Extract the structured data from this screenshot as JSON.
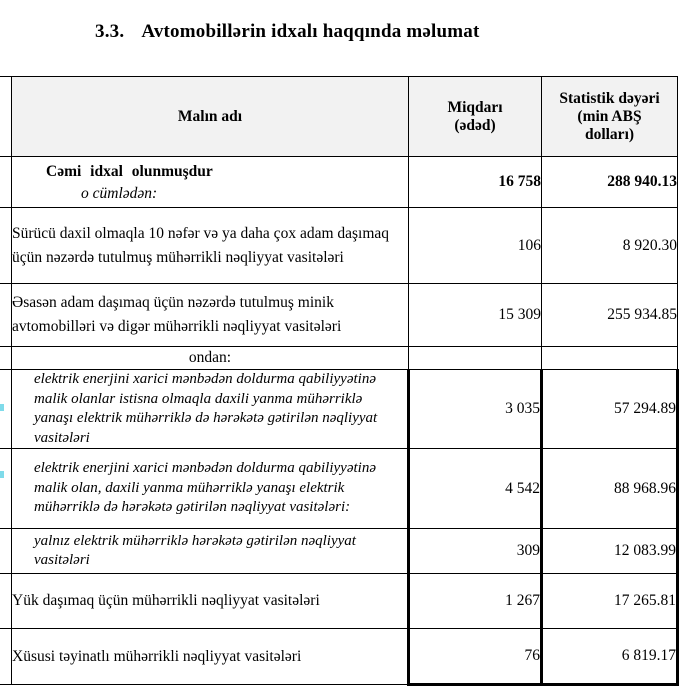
{
  "document": {
    "section_number": "3.3.",
    "title": "Avtomobillərin idxalı haqqında məlumat"
  },
  "table": {
    "header": {
      "name": "Malın adı",
      "quantity": "Miqdarı\n(ədəd)",
      "value": "Statistik dəyəri\n(min ABŞ\ndolları)"
    },
    "rows": [
      {
        "style": "total",
        "name": "Cəmi  idxal  olunmuşdur",
        "subname": "o cümlədən:",
        "qty": "16 758",
        "val": "288 940.13"
      },
      {
        "style": "normal",
        "name": "Sürücü daxil olmaqla 10 nəfər və ya daha çox adam daşımaq üçün nəzərdə tutulmuş mühərrikli nəqliyyat vasitələri",
        "qty": "106",
        "val": "8 920.30"
      },
      {
        "style": "normal",
        "name": "Əsasən adam daşımaq üçün nəzərdə tutulmuş minik avtomobilləri və digər mühərrikli nəqliyyat vasitələri",
        "qty": "15 309",
        "val": "255 934.85"
      },
      {
        "style": "subheader",
        "name": "ondan:",
        "qty": "",
        "val": ""
      },
      {
        "style": "italic",
        "name": "elektrik enerjini xarici mənbədən doldurma qabiliyyətinə malik olanlar istisna olmaqla daxili yanma mühərriklə yanaşı elektrik mühərriklə də hərəkətə gətirilən nəqliyyat vasitələri",
        "qty": "3 035",
        "val": "57 294.89"
      },
      {
        "style": "italic",
        "name": "elektrik enerjini xarici mənbədən doldurma qabiliyyətinə malik olan, daxili yanma mühərriklə yanaşı elektrik mühərriklə də hərəkətə gətirilən nəqliyyat vasitələri:",
        "qty": "4 542",
        "val": "88 968.96"
      },
      {
        "style": "italic",
        "name": "yalnız elektrik mühərriklə hərəkətə gətirilən nəqliyyat vasitələri",
        "qty": "309",
        "val": "12 083.99"
      },
      {
        "style": "normal",
        "name": "Yük daşımaq üçün mühərrikli nəqliyyat vasitələri",
        "qty": "1 267",
        "val": "17 265.81"
      },
      {
        "style": "normal",
        "name": "Xüsusi təyinatlı mühərrikli nəqliyyat vasitələri",
        "qty": "76",
        "val": "6 819.17"
      }
    ]
  },
  "colors": {
    "text": "#000000",
    "border": "#000000",
    "header_background": "#f2f2f2",
    "margin_mark_cyan": "#7fdbea"
  }
}
